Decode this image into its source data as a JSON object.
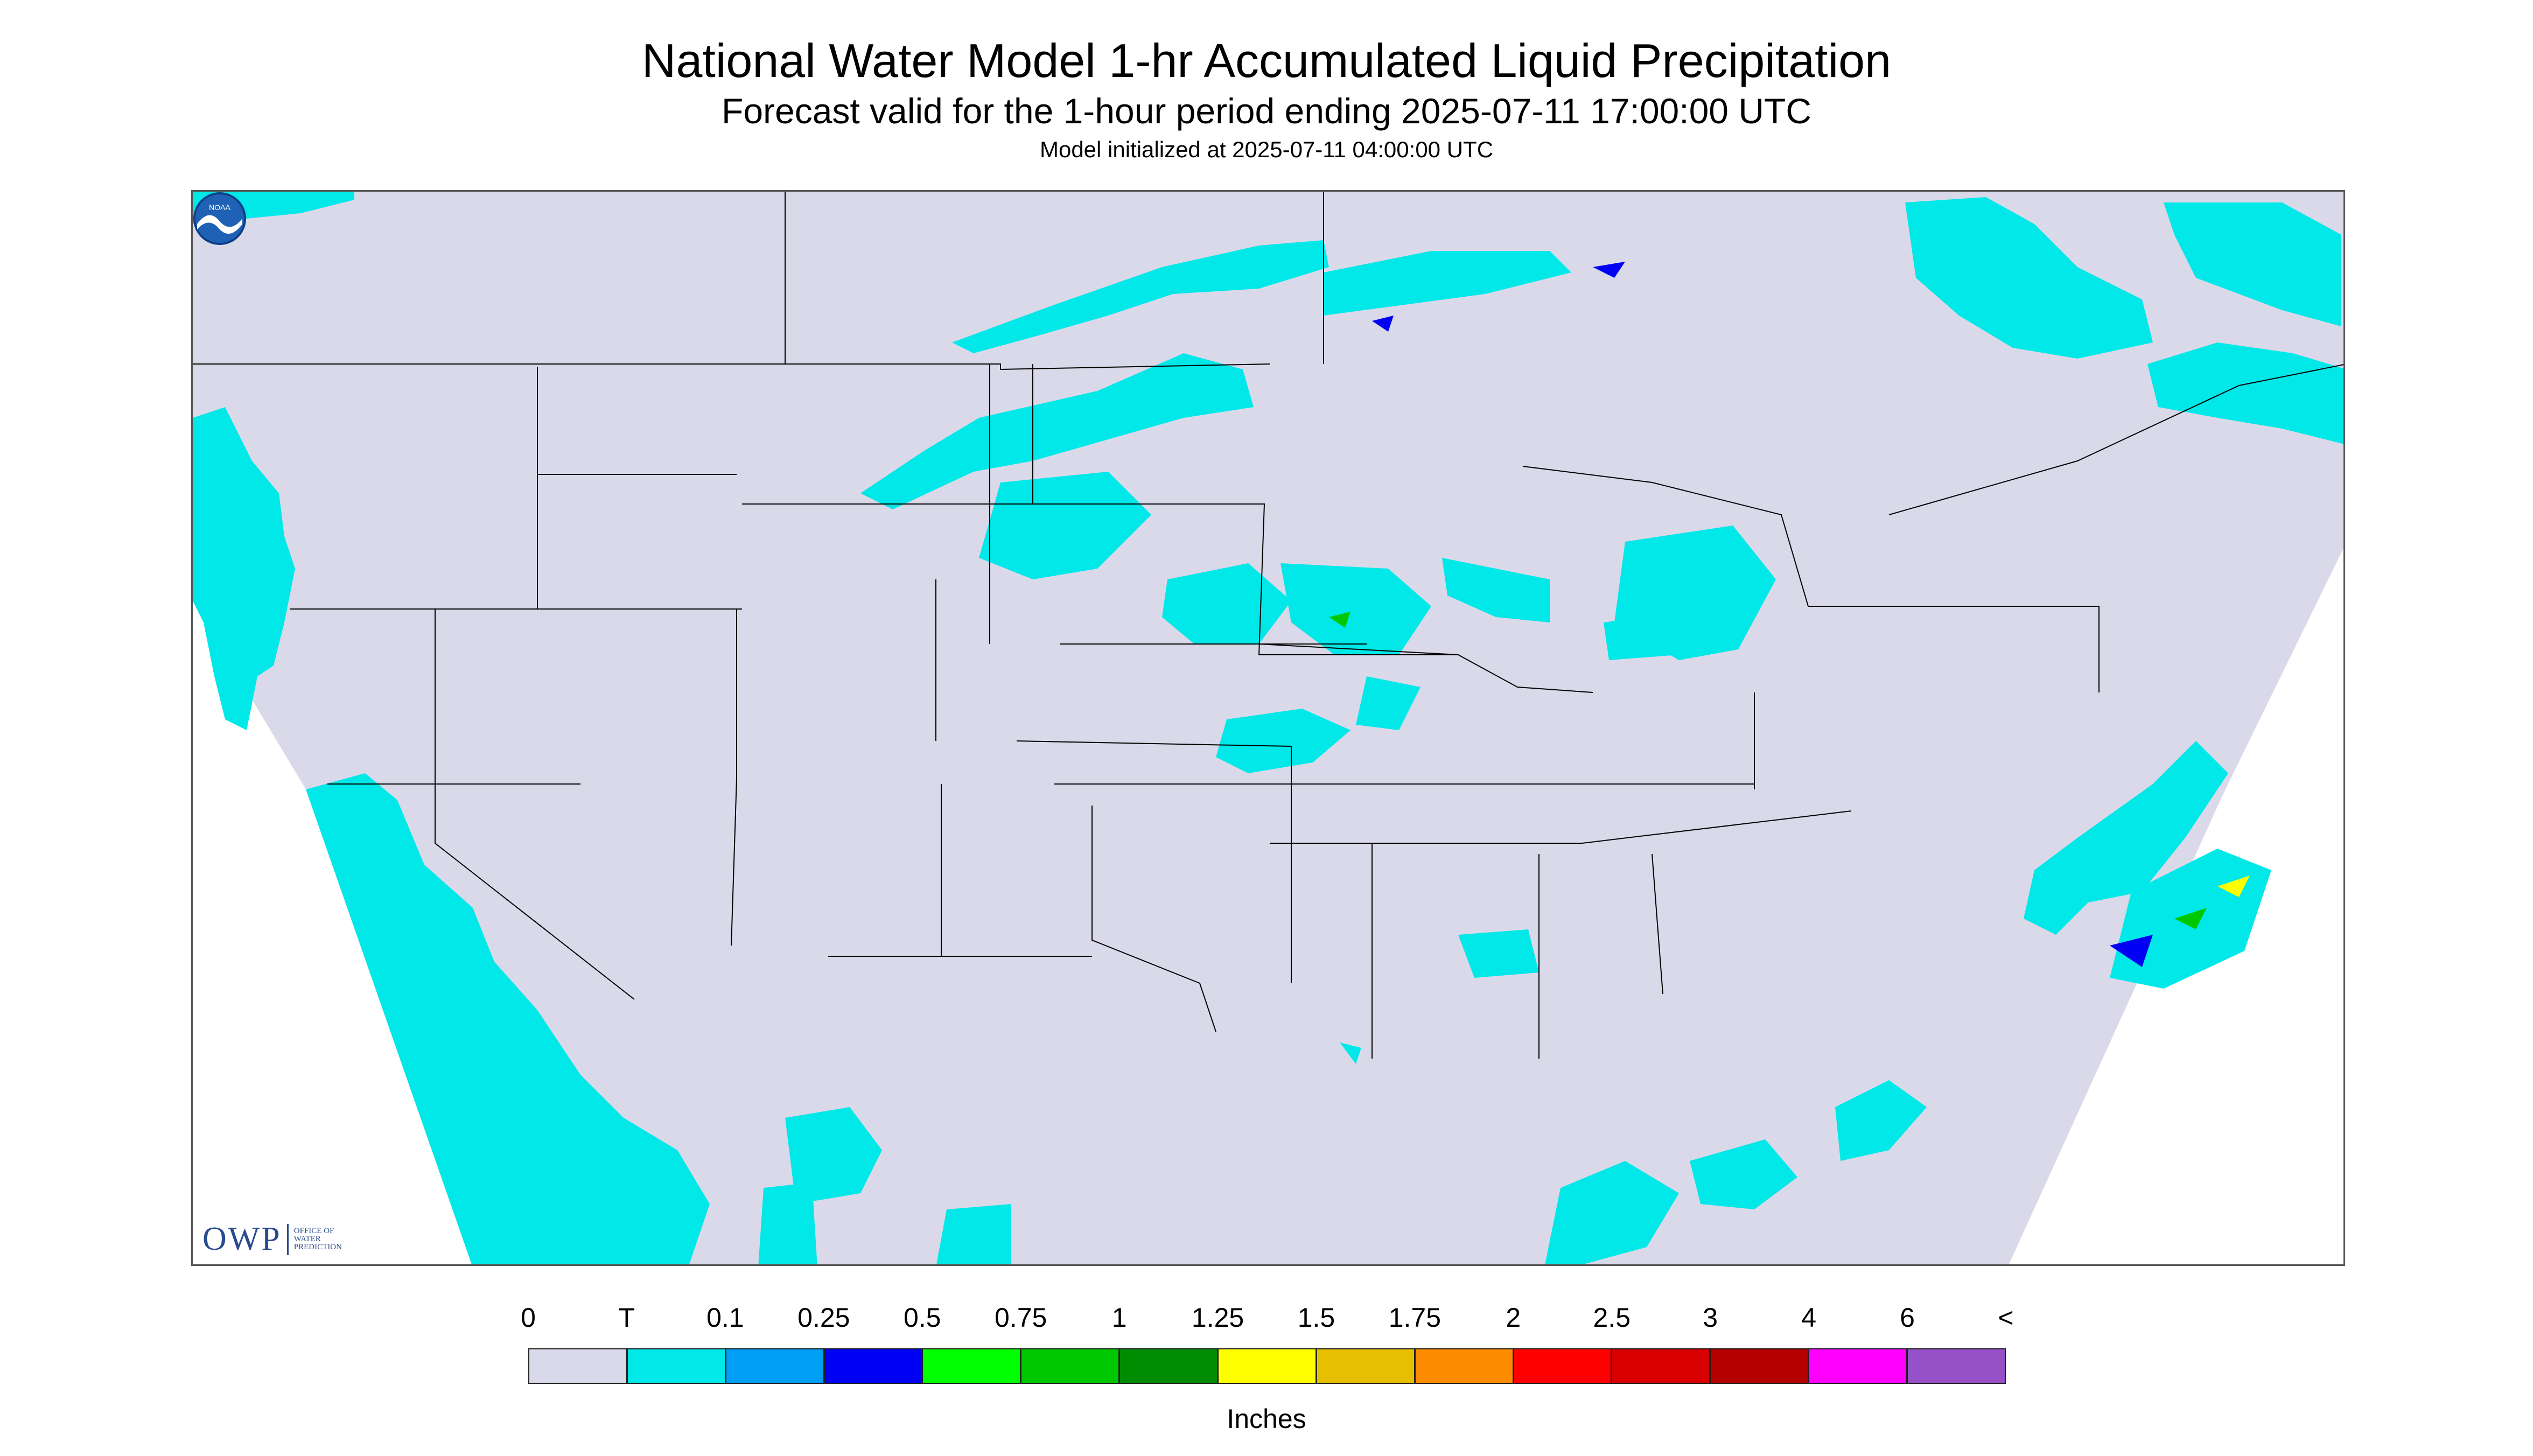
{
  "title": "National Water Model 1-hr Accumulated Liquid Precipitation",
  "subtitle": "Forecast valid for the 1-hour period ending 2025-07-11 17:00:00 UTC",
  "init_line": "Model initialized at 2025-07-11 04:00:00 UTC",
  "logo_left": {
    "text": "OWP",
    "sub": [
      "OFFICE OF",
      "WATER",
      "PREDICTION"
    ]
  },
  "logo_right": {
    "text": "NOAA",
    "icon": "noaa-emblem-icon"
  },
  "colors": {
    "background": "#d9d9ea",
    "state_lines": "#000000",
    "precip_trace": "#00e8e8"
  },
  "legend": {
    "units": "Inches",
    "ticks": [
      "0",
      "T",
      "0.1",
      "0.25",
      "0.5",
      "0.75",
      "1",
      "1.25",
      "1.5",
      "1.75",
      "2",
      "2.5",
      "3",
      "4",
      "6",
      "<"
    ],
    "colors": [
      "#d9d9ea",
      "#00e8e8",
      "#009ff5",
      "#0000f5",
      "#00ff00",
      "#00c800",
      "#008c00",
      "#ffff00",
      "#e6bf00",
      "#ff8c00",
      "#ff0000",
      "#d80000",
      "#b40000",
      "#ff00ff",
      "#9650c8"
    ]
  }
}
